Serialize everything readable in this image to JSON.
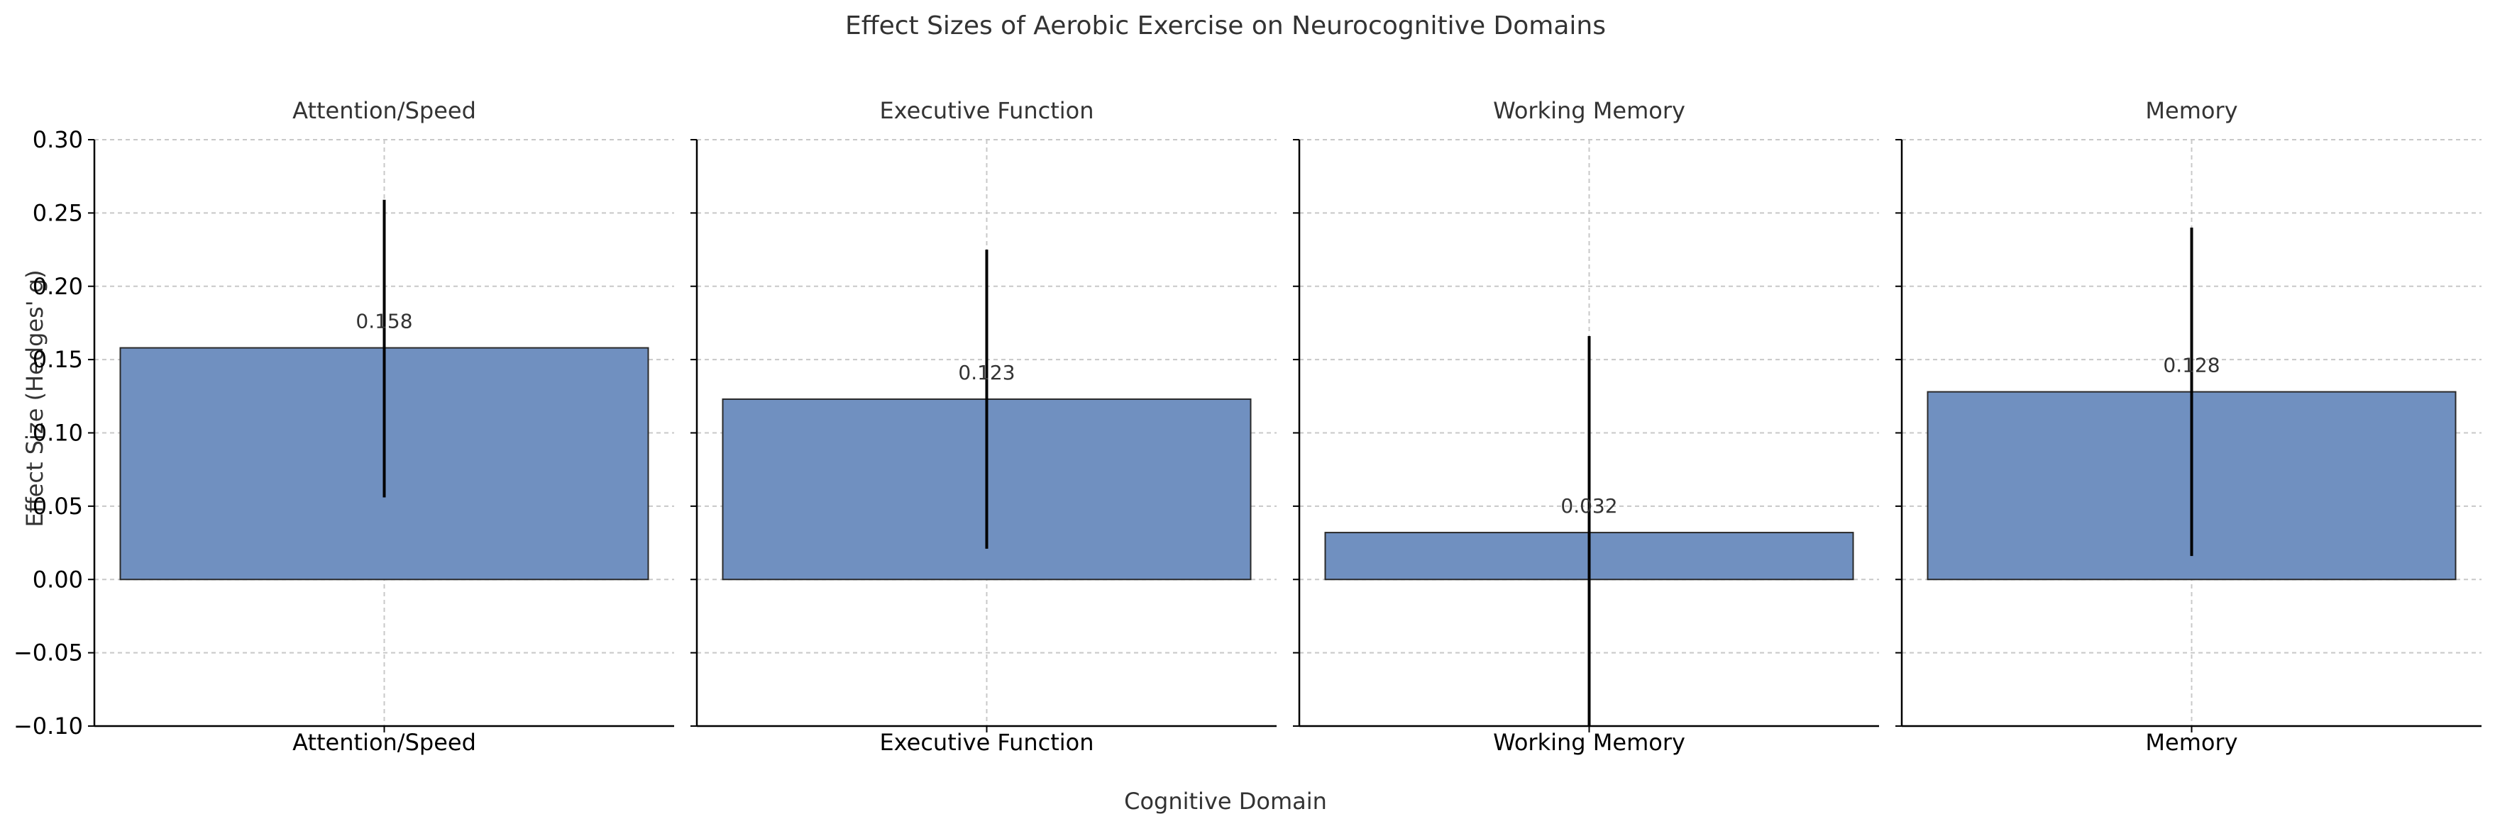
{
  "chart_data": {
    "type": "bar",
    "title": "Effect Sizes of Aerobic Exercise on Neurocognitive Domains",
    "xlabel": "Cognitive Domain",
    "ylabel": "Effect Size (Hedges' g)",
    "ylim": [
      -0.1,
      0.3
    ],
    "yticks": [
      -0.1,
      -0.05,
      0.0,
      0.05,
      0.1,
      0.15,
      0.2,
      0.25,
      0.3
    ],
    "ytick_labels": [
      "−0.10",
      "−0.05",
      "0.00",
      "0.05",
      "0.10",
      "0.15",
      "0.20",
      "0.25",
      "0.30"
    ],
    "grid": true,
    "sharey": true,
    "panels": [
      {
        "title": "Attention/Speed",
        "category": "Attention/Speed",
        "value": 0.158,
        "label": "0.158",
        "ci": [
          0.056,
          0.259
        ]
      },
      {
        "title": "Executive Function",
        "category": "Executive Function",
        "value": 0.123,
        "label": "0.123",
        "ci": [
          0.021,
          0.225
        ]
      },
      {
        "title": "Working Memory",
        "category": "Working Memory",
        "value": 0.032,
        "label": "0.032",
        "ci": [
          -0.1,
          0.166
        ]
      },
      {
        "title": "Memory",
        "category": "Memory",
        "value": 0.128,
        "label": "0.128",
        "ci": [
          0.016,
          0.24
        ]
      }
    ],
    "colors": {
      "bar_fill": "#7090c0",
      "bar_edge": "#2a2a2a",
      "error_bar": "#000000",
      "grid": "#c8c8c8",
      "axis": "#000000",
      "text": "#333333"
    }
  }
}
